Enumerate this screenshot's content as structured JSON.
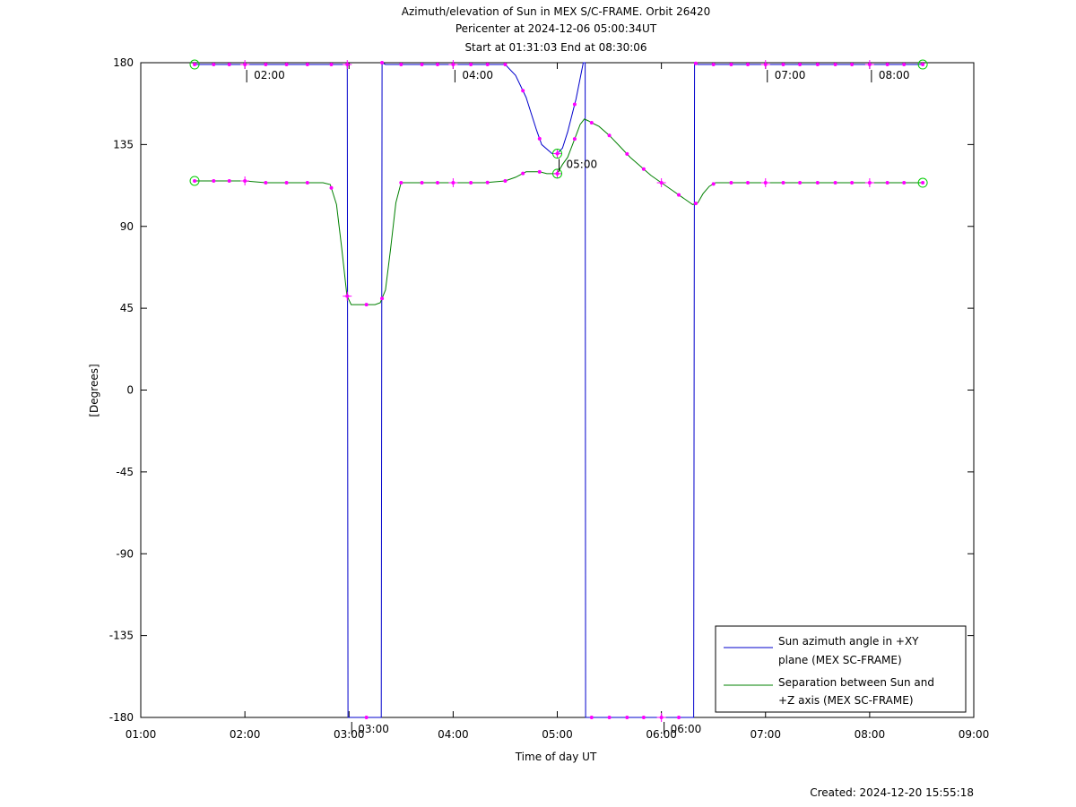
{
  "chart_data": {
    "type": "line",
    "title_lines": [
      "Azimuth/elevation of Sun in MEX S/C-FRAME.  Orbit 26420",
      "Pericenter at 2024-12-06 05:00:34UT",
      "Start at 01:31:03 End at 08:30:06"
    ],
    "xlabel": "Time of day UT",
    "ylabel": "[Degrees]",
    "xlim_hours": [
      1,
      9
    ],
    "ylim": [
      -180,
      180
    ],
    "x_ticks": [
      {
        "hour": 1,
        "label": "01:00"
      },
      {
        "hour": 2,
        "label": "02:00"
      },
      {
        "hour": 3,
        "label": "03:00"
      },
      {
        "hour": 4,
        "label": "04:00"
      },
      {
        "hour": 5,
        "label": "05:00"
      },
      {
        "hour": 6,
        "label": "06:00"
      },
      {
        "hour": 7,
        "label": "07:00"
      },
      {
        "hour": 8,
        "label": "08:00"
      },
      {
        "hour": 9,
        "label": "09:00"
      }
    ],
    "y_ticks": [
      {
        "value": 180,
        "label": "180"
      },
      {
        "value": 135,
        "label": "135"
      },
      {
        "value": 90,
        "label": "90"
      },
      {
        "value": 45,
        "label": "45"
      },
      {
        "value": 0,
        "label": "0"
      },
      {
        "value": -45,
        "label": "-45"
      },
      {
        "value": -90,
        "label": "-90"
      },
      {
        "value": -135,
        "label": "-135"
      },
      {
        "value": -180,
        "label": "-180"
      }
    ],
    "legend_position": "bottom-right",
    "series": [
      {
        "name_lines": [
          "Sun azimuth angle in +XY",
          "plane (MEX SC-FRAME)"
        ],
        "color": "#0000cc",
        "x": [
          1.517,
          1.7,
          1.85,
          2.0,
          2.2,
          2.4,
          2.6,
          2.8,
          2.97,
          2.983,
          2.99,
          3.0,
          3.1,
          3.2,
          3.3,
          3.31,
          3.317,
          3.35,
          3.5,
          3.7,
          3.9,
          4.1,
          4.3,
          4.5,
          4.6,
          4.7,
          4.8,
          4.85,
          4.95,
          5.0,
          5.05,
          5.1,
          5.18,
          5.25,
          5.268,
          5.272,
          5.275,
          5.3,
          5.5,
          5.7,
          5.9,
          6.1,
          6.25,
          6.3,
          6.31,
          6.318,
          6.35,
          6.5,
          6.7,
          6.9,
          7.1,
          7.3,
          7.5,
          7.7,
          7.9,
          8.1,
          8.3,
          8.51
        ],
        "y": [
          179,
          179,
          179,
          179,
          179,
          179,
          179,
          179,
          179,
          179,
          -180,
          -180,
          -180,
          -180,
          -180,
          -180,
          180,
          179,
          179,
          179,
          179,
          179,
          179,
          179,
          173,
          161,
          143,
          135,
          130,
          130,
          133,
          142,
          160,
          180,
          180,
          -180,
          -180,
          -180,
          -180,
          -180,
          -180,
          -180,
          -180,
          -180,
          -180,
          180,
          179,
          179,
          179,
          179,
          179,
          179,
          179,
          179,
          179,
          179,
          179,
          179
        ]
      },
      {
        "name_lines": [
          "Separation between Sun and",
          "+Z axis (MEX SC-FRAME)"
        ],
        "color": "#008000",
        "x": [
          1.517,
          1.7,
          1.85,
          2.0,
          2.2,
          2.4,
          2.6,
          2.75,
          2.82,
          2.88,
          2.93,
          2.98,
          3.02,
          3.1,
          3.18,
          3.25,
          3.3,
          3.35,
          3.4,
          3.45,
          3.5,
          3.7,
          3.9,
          4.1,
          4.3,
          4.5,
          4.6,
          4.7,
          4.83,
          4.9,
          5.0,
          5.05,
          5.1,
          5.16,
          5.22,
          5.26,
          5.3,
          5.33,
          5.4,
          5.5,
          5.6,
          5.7,
          5.8,
          5.9,
          6.0,
          6.1,
          6.2,
          6.3,
          6.35,
          6.4,
          6.46,
          6.52,
          6.58,
          6.7,
          6.9,
          7.1,
          7.3,
          7.5,
          7.7,
          7.9,
          8.1,
          8.3,
          8.51
        ],
        "y": [
          115,
          115,
          115,
          115,
          114,
          114,
          114,
          114,
          113,
          102,
          78,
          52,
          47,
          47,
          47,
          47,
          48,
          55,
          78,
          103,
          114,
          114,
          114,
          114,
          114,
          115,
          117,
          120,
          120,
          119,
          119,
          124,
          128,
          137,
          146,
          149,
          148,
          147,
          145,
          140,
          134,
          128,
          123,
          118,
          114,
          110,
          106,
          102,
          103,
          108,
          112,
          114,
          114,
          114,
          114,
          114,
          114,
          114,
          114,
          114,
          114,
          114,
          114
        ]
      }
    ],
    "markers": {
      "color": "#ff00ff",
      "circle_color": "#00cc00",
      "dot_hours": [
        1.517,
        1.7,
        1.85,
        2.0,
        2.2,
        2.4,
        2.6,
        2.83,
        2.983,
        3.167,
        3.317,
        3.5,
        3.7,
        3.85,
        4.0,
        4.17,
        4.33,
        4.5,
        4.67,
        4.83,
        5.0,
        5.167,
        5.33,
        5.5,
        5.67,
        5.83,
        6.0,
        6.167,
        6.33,
        6.5,
        6.67,
        6.83,
        7.0,
        7.17,
        7.33,
        7.5,
        7.67,
        7.83,
        8.0,
        8.17,
        8.33,
        8.51
      ],
      "cross_hours": [
        2.0,
        2.983,
        4.0,
        5.0,
        6.0,
        7.0,
        8.0
      ],
      "circle_hours": [
        1.517,
        5.0,
        8.51
      ]
    },
    "annotations": [
      {
        "hour": 2.0,
        "value": 179,
        "label": "02:00"
      },
      {
        "hour": 3.0,
        "value": -180,
        "label": "03:00"
      },
      {
        "hour": 4.0,
        "value": 179,
        "label": "04:00"
      },
      {
        "hour": 5.0,
        "value": 130,
        "label": "05:00"
      },
      {
        "hour": 6.0,
        "value": -180,
        "label": "06:00"
      },
      {
        "hour": 7.0,
        "value": 179,
        "label": "07:00"
      },
      {
        "hour": 8.0,
        "value": 179,
        "label": "08:00"
      }
    ]
  },
  "footer": {
    "created": "Created: 2024-12-20 15:55:18"
  }
}
